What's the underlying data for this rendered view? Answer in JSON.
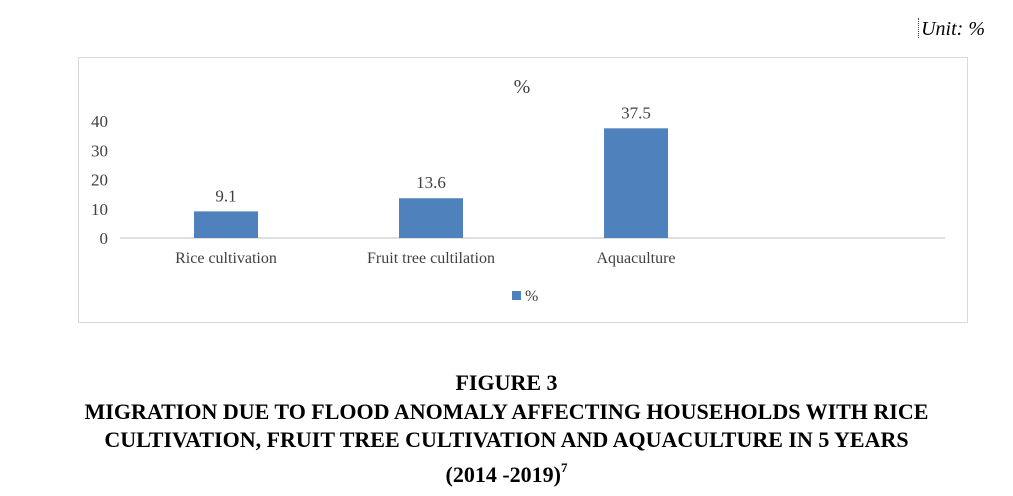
{
  "unit_label": "Unit: %",
  "figure": {
    "number": "FIGURE 3",
    "title_line1": "MIGRATION DUE TO FLOOD ANOMALY AFFECTING HOUSEHOLDS WITH RICE",
    "title_line2": "CULTIVATION, FRUIT TREE CULTIVATION AND AQUACULTURE IN 5 YEARS",
    "title_line3": "(2014 -2019)",
    "footnote_ref": "7"
  },
  "chart_data": {
    "type": "bar",
    "title": "%",
    "categories": [
      "Rice cultivation",
      "Fruit tree cultilation",
      "Aquaculture"
    ],
    "series": [
      {
        "name": "%",
        "values": [
          9.1,
          13.6,
          37.5
        ],
        "color": "#4f81bd"
      }
    ],
    "data_labels": [
      "9.1",
      "13.6",
      "37.5"
    ],
    "y_ticks": [
      0,
      10,
      20,
      30,
      40
    ],
    "ylim": [
      0,
      40
    ],
    "xlabel": "",
    "ylabel": "",
    "grid": false,
    "legend_position": "bottom"
  }
}
